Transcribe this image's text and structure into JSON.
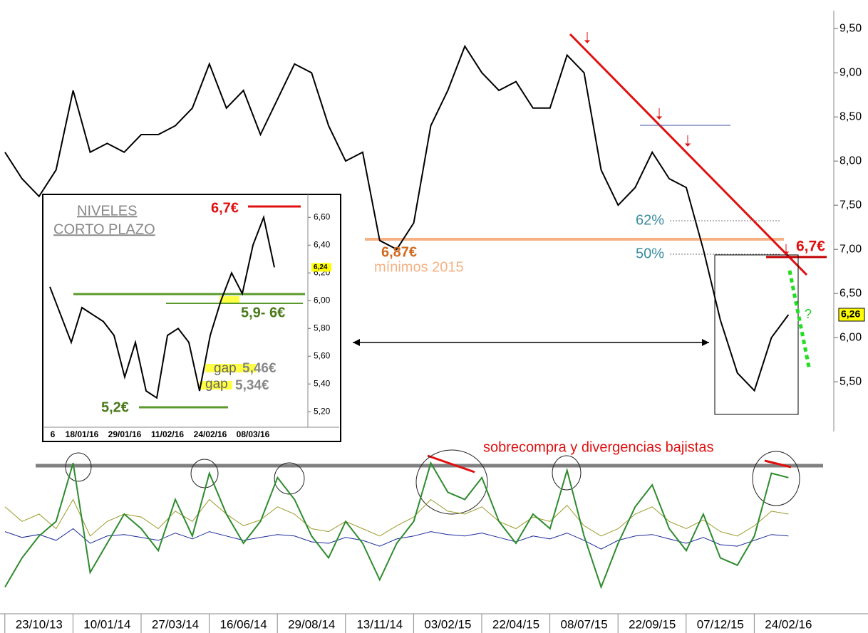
{
  "chart_data": [
    {
      "type": "line",
      "color": "#000000",
      "categories": [
        null,
        null,
        "23/10/13",
        null,
        null,
        null,
        "10/01/14",
        null,
        null,
        null,
        "27/03/14",
        null,
        null,
        null,
        "16/06/14",
        null,
        null,
        null,
        "29/08/14",
        null,
        null,
        null,
        "13/11/14",
        null,
        null,
        null,
        "03/02/15",
        null,
        null,
        null,
        "22/04/15",
        null,
        null,
        null,
        "08/07/15",
        null,
        null,
        null,
        "22/09/15",
        null,
        null,
        null,
        "07/12/15",
        null,
        null,
        null,
        "24/02/16"
      ],
      "values": [
        8.1,
        7.8,
        7.6,
        7.9,
        8.8,
        8.1,
        8.2,
        8.1,
        8.3,
        8.3,
        8.4,
        8.6,
        9.1,
        8.6,
        8.8,
        8.3,
        8.7,
        9.1,
        9.0,
        8.4,
        8.0,
        8.1,
        7.1,
        7.0,
        7.3,
        8.4,
        8.8,
        9.3,
        9.0,
        8.8,
        8.9,
        8.6,
        8.6,
        9.2,
        9.0,
        7.9,
        7.5,
        7.7,
        8.1,
        7.8,
        7.7,
        7.0,
        6.2,
        5.6,
        5.4,
        6.0,
        6.26
      ],
      "ylim": [
        5.05,
        9.8
      ],
      "yticks": [
        {
          "value": 5.5,
          "label": "5,50"
        },
        {
          "value": 6.0,
          "label": "6,00"
        },
        {
          "value": 6.5,
          "label": "6,50"
        },
        {
          "value": 7.0,
          "label": "7,00"
        },
        {
          "value": 7.5,
          "label": "7,50"
        },
        {
          "value": 8.0,
          "label": "8,00"
        },
        {
          "value": 8.5,
          "label": "8,50"
        },
        {
          "value": 9.0,
          "label": "9,00"
        },
        {
          "value": 9.5,
          "label": "9,50"
        }
      ],
      "last_price": {
        "value": 6.26,
        "label": "6,26"
      },
      "annotations": [
        "6,87€",
        "mínimos 2015",
        "62%",
        "50%",
        "6,7€",
        "?",
        "sobrecompra y divergencias bajistas"
      ]
    },
    {
      "type": "line",
      "ylim": [
        0,
        100
      ],
      "series": [
        {
          "color": "#2e8b2e",
          "values": [
            10,
            30,
            45,
            55,
            95,
            20,
            40,
            60,
            50,
            35,
            70,
            45,
            88,
            60,
            40,
            55,
            85,
            70,
            45,
            30,
            55,
            40,
            15,
            40,
            55,
            95,
            75,
            70,
            85,
            55,
            40,
            60,
            50,
            90,
            45,
            10,
            40,
            65,
            80,
            50,
            35,
            60,
            30,
            25,
            45,
            88,
            85
          ]
        },
        {
          "color": "#9a9a2a",
          "values": [
            65,
            55,
            60,
            50,
            70,
            45,
            55,
            60,
            58,
            50,
            62,
            55,
            70,
            60,
            52,
            56,
            65,
            60,
            50,
            48,
            55,
            50,
            45,
            52,
            58,
            70,
            62,
            60,
            65,
            55,
            50,
            58,
            55,
            66,
            52,
            45,
            50,
            60,
            65,
            55,
            50,
            56,
            48,
            45,
            52,
            62,
            60
          ]
        },
        {
          "color": "#1a2a9a",
          "values": [
            48,
            44,
            46,
            42,
            50,
            40,
            45,
            46,
            44,
            42,
            47,
            43,
            48,
            45,
            42,
            44,
            46,
            45,
            41,
            40,
            44,
            42,
            38,
            43,
            45,
            48,
            46,
            45,
            47,
            44,
            41,
            45,
            43,
            47,
            42,
            36,
            42,
            45,
            46,
            43,
            40,
            44,
            39,
            38,
            42,
            46,
            45
          ]
        }
      ]
    },
    {
      "type": "line",
      "color": "#000000",
      "title": [
        "NIVELES",
        "CORTO PLAZO"
      ],
      "categories": [
        "6",
        null,
        null,
        "18/01/16",
        null,
        null,
        null,
        "29/01/16",
        null,
        null,
        null,
        "11/02/16",
        null,
        null,
        null,
        "24/02/16",
        null,
        null,
        null,
        "08/03/16",
        null,
        null
      ],
      "values": [
        6.1,
        5.9,
        5.7,
        5.95,
        5.9,
        5.85,
        5.75,
        5.45,
        5.7,
        5.35,
        5.3,
        5.75,
        5.8,
        5.7,
        5.35,
        5.75,
        6.0,
        6.2,
        6.05,
        6.4,
        6.6,
        6.24
      ],
      "ylim": [
        5.15,
        6.75
      ],
      "yticks": [
        {
          "value": 5.2,
          "label": "5,20"
        },
        {
          "value": 5.4,
          "label": "5,40"
        },
        {
          "value": 5.6,
          "label": "5,60"
        },
        {
          "value": 5.8,
          "label": "5,80"
        },
        {
          "value": 6.0,
          "label": "6,00"
        },
        {
          "value": 6.2,
          "label": "6,20"
        },
        {
          "value": 6.4,
          "label": "6,40"
        },
        {
          "value": 6.6,
          "label": "6,60"
        }
      ],
      "last_price": {
        "value": 6.24,
        "label": "6,24"
      },
      "annotations": [
        "6,7€",
        "5,9- 6€",
        "gap",
        "5,46€",
        "gap",
        "5,34€",
        "5,2€"
      ]
    }
  ]
}
